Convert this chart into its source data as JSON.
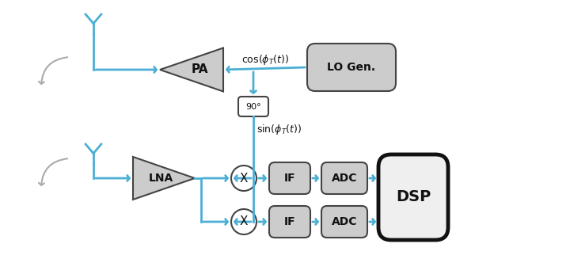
{
  "bg_color": "#ffffff",
  "arrow_color": "#4BAFD4",
  "block_face_color": "#CCCCCC",
  "block_edge_color": "#444444",
  "dsp_face_color": "#EFEFEF",
  "dsp_edge_color": "#111111",
  "box90_face_color": "#FFFFFF",
  "mixer_face_color": "#FFFFFF",
  "arrow_lw": 2.0,
  "block_lw": 1.5,
  "dsp_lw": 3.5,
  "gray_arrow_color": "#AAAAAA",
  "text_color": "#111111",
  "label_90": "90°",
  "label_PA": "PA",
  "label_LNA": "LNA",
  "label_LO": "LO Gen.",
  "label_IF": "IF",
  "label_ADC": "ADC",
  "label_DSP": "DSP",
  "label_X": "X",
  "figw": 7.2,
  "figh": 3.51,
  "dpi": 100
}
